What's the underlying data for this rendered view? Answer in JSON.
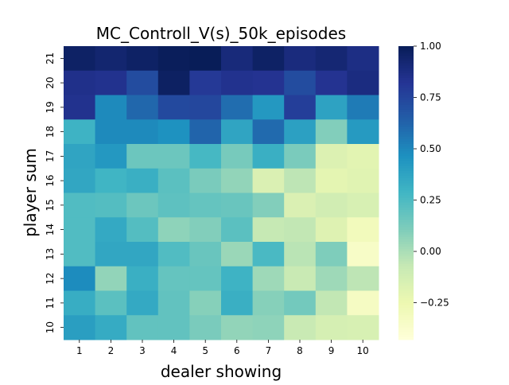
{
  "chart_data": {
    "type": "heatmap",
    "title": "MC_Controll_V(s)_50k_episodes",
    "xlabel": "dealer showing",
    "ylabel": "player sum",
    "x_categories": [
      "1",
      "2",
      "3",
      "4",
      "5",
      "6",
      "7",
      "8",
      "9",
      "10"
    ],
    "y_categories": [
      "21",
      "20",
      "19",
      "18",
      "17",
      "16",
      "15",
      "14",
      "13",
      "12",
      "11",
      "10"
    ],
    "colormap": "YlGnBu",
    "colorbar": {
      "vmin": -0.43,
      "vmax": 1.0,
      "ticks": [
        -0.25,
        0.0,
        0.25,
        0.5,
        0.75,
        1.0
      ],
      "tick_labels": [
        "−0.25",
        "0.00",
        "0.25",
        "0.50",
        "0.75",
        "1.00"
      ]
    },
    "values": [
      [
        0.96,
        0.93,
        0.96,
        0.99,
        1.0,
        0.9,
        0.96,
        0.89,
        0.92,
        0.87
      ],
      [
        0.85,
        0.84,
        0.72,
        0.97,
        0.8,
        0.84,
        0.83,
        0.72,
        0.83,
        0.88
      ],
      [
        0.84,
        0.49,
        0.61,
        0.73,
        0.74,
        0.59,
        0.43,
        0.78,
        0.38,
        0.54
      ],
      [
        0.3,
        0.49,
        0.49,
        0.46,
        0.62,
        0.37,
        0.6,
        0.39,
        0.1,
        0.42
      ],
      [
        0.37,
        0.43,
        0.16,
        0.16,
        0.27,
        0.13,
        0.32,
        0.12,
        -0.17,
        -0.2
      ],
      [
        0.36,
        0.29,
        0.32,
        0.21,
        0.12,
        0.06,
        -0.16,
        -0.05,
        -0.21,
        -0.19
      ],
      [
        0.24,
        0.23,
        0.16,
        0.2,
        0.18,
        0.17,
        0.1,
        -0.16,
        -0.12,
        -0.15
      ],
      [
        0.24,
        0.35,
        0.23,
        0.07,
        0.1,
        0.21,
        -0.07,
        -0.06,
        -0.18,
        -0.3
      ],
      [
        0.24,
        0.36,
        0.36,
        0.24,
        0.17,
        0.04,
        0.26,
        -0.04,
        0.11,
        -0.35
      ],
      [
        0.48,
        0.06,
        0.32,
        0.18,
        0.18,
        0.3,
        0.03,
        -0.08,
        0.03,
        -0.05
      ],
      [
        0.33,
        0.21,
        0.35,
        0.19,
        0.09,
        0.32,
        0.09,
        0.14,
        -0.06,
        -0.33
      ],
      [
        0.4,
        0.34,
        0.19,
        0.19,
        0.12,
        0.06,
        0.07,
        -0.08,
        -0.14,
        -0.15
      ]
    ]
  }
}
